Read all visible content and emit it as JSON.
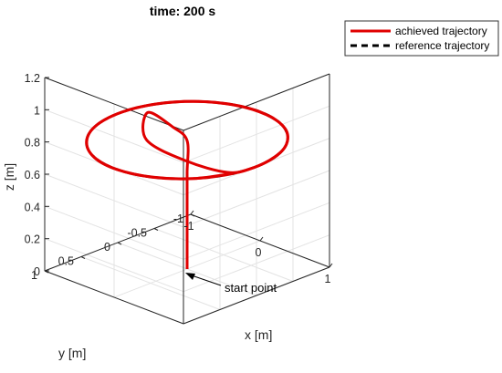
{
  "chart_data": {
    "type": "line3d",
    "title": "time: 200 s",
    "xlabel": "x [m]",
    "ylabel": "y [m]",
    "zlabel": "z [m]",
    "xlim": [
      -1,
      1
    ],
    "ylim": [
      -1,
      1
    ],
    "zlim": [
      0,
      1.2
    ],
    "xticks": [
      "-1",
      "0",
      "1"
    ],
    "yticks": [
      "-1",
      "-0.5",
      "0",
      "0.5",
      "1"
    ],
    "zticks": [
      "0",
      "0.2",
      "0.4",
      "0.6",
      "0.8",
      "1",
      "1.2"
    ],
    "grid": true,
    "legend_position": "top-right",
    "series": [
      {
        "name": "achieved trajectory",
        "color": "#e00000",
        "style": "solid",
        "points": [
          [
            0,
            0,
            0
          ],
          [
            0,
            0,
            0.2
          ],
          [
            0,
            0,
            0.4
          ],
          [
            0.0,
            0.0,
            0.6
          ],
          [
            0.01,
            0.01,
            0.8
          ],
          [
            -0.05,
            0.15,
            0.9
          ],
          [
            -0.2,
            0.35,
            1.0
          ],
          [
            0.15,
            0.7,
            0.95
          ],
          [
            0.55,
            0.55,
            0.86
          ],
          [
            0.9,
            0.3,
            0.8
          ],
          [
            1.0,
            0.05,
            0.8
          ],
          [
            0.95,
            -0.3,
            0.8
          ],
          [
            0.8,
            -0.6,
            0.8
          ],
          [
            0.5,
            -0.87,
            0.8
          ],
          [
            0.1,
            -0.99,
            0.8
          ],
          [
            -0.3,
            -0.95,
            0.8
          ],
          [
            -0.65,
            -0.76,
            0.8
          ],
          [
            -0.9,
            -0.44,
            0.8
          ],
          [
            -1.0,
            -0.05,
            0.8
          ],
          [
            -0.93,
            0.37,
            0.8
          ],
          [
            -0.7,
            0.71,
            0.8
          ],
          [
            -0.35,
            0.94,
            0.8
          ],
          [
            0.05,
            1.0,
            0.8
          ],
          [
            0.45,
            0.89,
            0.8
          ],
          [
            0.77,
            0.64,
            0.8
          ],
          [
            0.96,
            0.28,
            0.8
          ]
        ]
      },
      {
        "name": "reference trajectory",
        "color": "#000000",
        "style": "dashed",
        "circle": {
          "radius": 1,
          "z": 0.8
        }
      }
    ],
    "annotations": [
      {
        "text": "start point",
        "arrow_to": [
          0,
          0,
          0
        ]
      }
    ]
  }
}
